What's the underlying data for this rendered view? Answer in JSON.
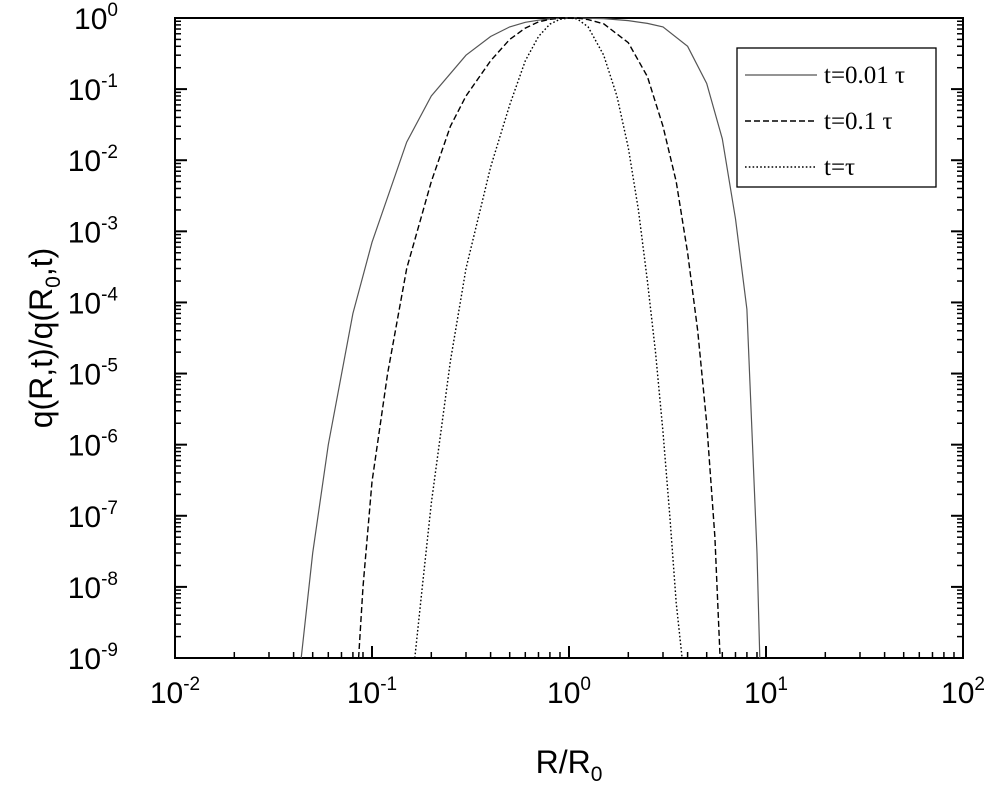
{
  "chart_data": {
    "type": "line",
    "title": "",
    "xlabel": {
      "main": "R/R",
      "sub": "0"
    },
    "ylabel": {
      "parts": [
        "q(R,t)/q(R",
        ",t)"
      ],
      "sub": "0"
    },
    "x_scale": "log",
    "y_scale": "log",
    "xlim": [
      0.01,
      100
    ],
    "ylim": [
      1e-09,
      1
    ],
    "x_ticks": [
      {
        "value": 0.01,
        "base": "10",
        "exp": "-2"
      },
      {
        "value": 0.1,
        "base": "10",
        "exp": "-1"
      },
      {
        "value": 1,
        "base": "10",
        "exp": "0"
      },
      {
        "value": 10,
        "base": "10",
        "exp": "1"
      },
      {
        "value": 100,
        "base": "10",
        "exp": "2"
      }
    ],
    "y_ticks": [
      {
        "value": 1e-09,
        "base": "10",
        "exp": "-9"
      },
      {
        "value": 1e-08,
        "base": "10",
        "exp": "-8"
      },
      {
        "value": 1e-07,
        "base": "10",
        "exp": "-7"
      },
      {
        "value": 1e-06,
        "base": "10",
        "exp": "-6"
      },
      {
        "value": 1e-05,
        "base": "10",
        "exp": "-5"
      },
      {
        "value": 0.0001,
        "base": "10",
        "exp": "-4"
      },
      {
        "value": 0.001,
        "base": "10",
        "exp": "-3"
      },
      {
        "value": 0.01,
        "base": "10",
        "exp": "-2"
      },
      {
        "value": 0.1,
        "base": "10",
        "exp": "-1"
      },
      {
        "value": 1,
        "base": "10",
        "exp": "0"
      }
    ],
    "grid": false,
    "legend_position": "top-right",
    "series": [
      {
        "name": "t=0.01 τ",
        "style": "solid",
        "color": "#555555",
        "x": [
          0.0437,
          0.05,
          0.06,
          0.08,
          0.1,
          0.15,
          0.2,
          0.3,
          0.4,
          0.5,
          0.6,
          0.7,
          0.8,
          0.9,
          1.0,
          1.1,
          1.25,
          1.5,
          2.0,
          2.5,
          3.0,
          4.0,
          5.0,
          6.0,
          7.0,
          8.0,
          9.0,
          9.3
        ],
        "y": [
          1e-09,
          3e-08,
          1e-06,
          7e-05,
          0.0007,
          0.018,
          0.08,
          0.3,
          0.55,
          0.75,
          0.87,
          0.93,
          0.97,
          0.99,
          1.0,
          1.0,
          0.99,
          0.98,
          0.92,
          0.84,
          0.75,
          0.4,
          0.12,
          0.02,
          0.0015,
          8e-05,
          3e-08,
          1e-09
        ]
      },
      {
        "name": "t=0.1 τ",
        "style": "dashed",
        "color": "#000000",
        "x": [
          0.0855,
          0.09,
          0.1,
          0.12,
          0.15,
          0.2,
          0.25,
          0.3,
          0.4,
          0.5,
          0.6,
          0.7,
          0.8,
          0.9,
          1.0,
          1.1,
          1.25,
          1.5,
          2.0,
          2.5,
          3.0,
          3.5,
          4.0,
          4.5,
          5.0,
          5.5,
          5.85
        ],
        "y": [
          1e-09,
          1e-08,
          3e-07,
          1e-05,
          0.0003,
          0.005,
          0.03,
          0.08,
          0.25,
          0.5,
          0.72,
          0.88,
          0.96,
          0.99,
          1.0,
          1.0,
          0.95,
          0.83,
          0.45,
          0.15,
          0.03,
          0.005,
          0.0005,
          4e-05,
          2e-06,
          5e-08,
          1e-09
        ]
      },
      {
        "name": "t=τ",
        "style": "dotted",
        "color": "#000000",
        "x": [
          0.165,
          0.18,
          0.2,
          0.25,
          0.3,
          0.4,
          0.5,
          0.6,
          0.7,
          0.8,
          0.9,
          1.0,
          1.1,
          1.25,
          1.5,
          1.75,
          2.0,
          2.25,
          2.5,
          2.75,
          3.0,
          3.25,
          3.5,
          3.75
        ],
        "y": [
          1e-09,
          1e-08,
          1.5e-07,
          1.5e-05,
          0.0003,
          0.008,
          0.06,
          0.25,
          0.55,
          0.82,
          0.96,
          1.0,
          0.97,
          0.75,
          0.3,
          0.08,
          0.015,
          0.002,
          0.0002,
          2e-05,
          1.5e-06,
          1e-07,
          6e-09,
          1e-09
        ]
      }
    ]
  }
}
